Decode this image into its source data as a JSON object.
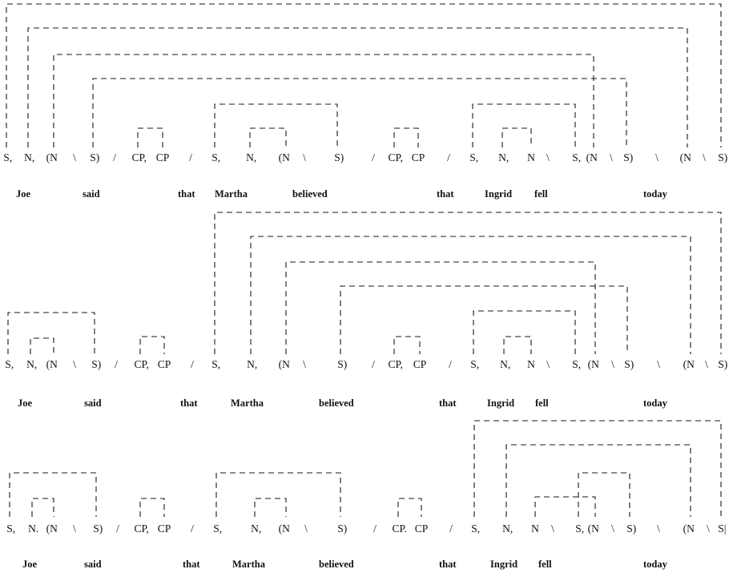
{
  "diagram": {
    "rows": [
      {
        "tokens": [
          "S,",
          "N,",
          "(N",
          "\\",
          "S)",
          "/",
          "CP,",
          "CP",
          "/",
          "S,",
          "N,",
          "(N",
          "\\",
          "S)",
          "/",
          "CP,",
          "CP",
          "/",
          "S,",
          "N,",
          "N",
          "\\",
          "S,",
          "(N",
          "\\",
          "S)",
          "\\",
          "(N",
          "\\",
          "S)"
        ],
        "words": [
          "Joe",
          "said",
          "that",
          "Martha",
          "believed",
          "that",
          "Ingrid",
          "fell",
          "today"
        ],
        "links": [
          [
            0,
            19
          ],
          [
            1,
            18
          ],
          [
            2,
            16
          ],
          [
            3,
            17
          ],
          [
            4,
            5
          ],
          [
            6,
            9
          ],
          [
            7,
            8
          ],
          [
            10,
            11
          ],
          [
            12,
            15
          ],
          [
            13,
            14
          ]
        ]
      },
      {
        "tokens": [
          "S,",
          "N,",
          "(N",
          "\\",
          "S)",
          "/",
          "CP,",
          "CP",
          "/",
          "S,",
          "N,",
          "(N",
          "\\",
          "S)",
          "/",
          "CP,",
          "CP",
          "/",
          "S,",
          "N,",
          "N",
          "\\",
          "S,",
          "(N",
          "\\",
          "S)",
          "\\",
          "(N",
          "\\",
          "S)"
        ],
        "words": [
          "Joe",
          "said",
          "that",
          "Martha",
          "believed",
          "that",
          "Ingrid",
          "fell",
          "today"
        ],
        "links": [
          [
            0,
            3
          ],
          [
            1,
            2
          ],
          [
            4,
            5
          ],
          [
            6,
            19
          ],
          [
            7,
            18
          ],
          [
            8,
            16
          ],
          [
            9,
            17
          ],
          [
            10,
            11
          ],
          [
            12,
            15
          ],
          [
            13,
            14
          ]
        ]
      },
      {
        "tokens": [
          "S,",
          "N.",
          "(N",
          "\\",
          "S)",
          "/",
          "CP,",
          "CP",
          "/",
          "S,",
          "N,",
          "(N",
          "\\",
          "S)",
          "/",
          "CP.",
          "CP",
          "/",
          "S,",
          "N,",
          "N",
          "\\",
          "S,",
          "(N",
          "\\",
          "S)",
          "\\",
          "(N",
          "\\",
          "S|"
        ],
        "words": [
          "Joe",
          "said",
          "that",
          "Martha",
          "believed",
          "that",
          "Ingrid",
          "fell",
          "today"
        ],
        "links": [
          [
            0,
            3
          ],
          [
            1,
            2
          ],
          [
            4,
            5
          ],
          [
            6,
            9
          ],
          [
            7,
            8
          ],
          [
            10,
            11
          ],
          [
            12,
            19
          ],
          [
            13,
            18
          ],
          [
            14,
            16
          ],
          [
            15,
            17
          ]
        ]
      }
    ]
  }
}
